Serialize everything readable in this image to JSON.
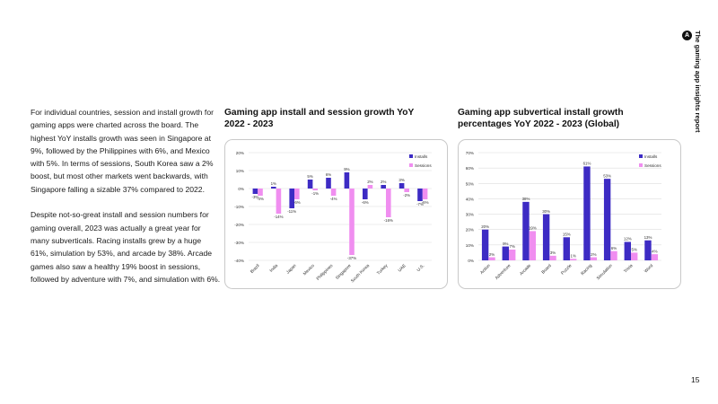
{
  "body": {
    "p1": "For individual countries, session and install growth for gaming apps were charted across the board. The highest YoY installs growth was seen in Singapore at 9%, followed by the Philippines with 6%, and Mexico with 5%. In terms of sessions, South Korea saw a 2% boost, but most other markets went backwards, with Singapore falling a sizable 37% compared to 2022.",
    "p2": "Despite not-so-great install and session numbers for gaming overall, 2023 was actually a great year for many subverticals. Racing installs grew by a huge 61%, simulation by 53%, and arcade by 38%. Arcade games also saw a healthy 19% boost in sessions, followed by adventure with 7%, and simulation with 6%."
  },
  "side": {
    "report_title": "The gaming app insights report",
    "logo_glyph": "A"
  },
  "page_number": "15",
  "colors": {
    "installs": "#3d2bc4",
    "sessions": "#f08ef0",
    "grid": "#dddddd",
    "text": "#333333"
  },
  "chart_data": [
    {
      "type": "bar",
      "title": "Gaming app install and session growth YoY 2022 - 2023",
      "categories": [
        "Brazil",
        "India",
        "Japan",
        "Mexico",
        "Philippines",
        "Singapore",
        "South Korea",
        "Turkey",
        "UAE",
        "U.S."
      ],
      "series": [
        {
          "name": "Installs",
          "values": [
            -3,
            1,
            -11,
            5,
            6,
            9,
            -6,
            2,
            3,
            -7
          ]
        },
        {
          "name": "Sessions",
          "values": [
            -4,
            -14,
            -6,
            -1,
            -4,
            -37,
            2,
            -16,
            -2,
            -6
          ]
        }
      ],
      "data_labels": {
        "Installs": [
          "-3%",
          "1%",
          "-11%",
          "5%",
          "6%",
          "9%",
          "-6%",
          "2%",
          "3%",
          "-7%"
        ],
        "Sessions": [
          "-4%",
          "-14%",
          "-6%",
          "-1%",
          "-4%",
          "-37%",
          "2%",
          "-16%",
          "-2%",
          "-6%"
        ]
      },
      "yticks": [
        20,
        10,
        0,
        -10,
        -20,
        -30,
        -40
      ],
      "ytick_labels": [
        "20%",
        "10%",
        "0%",
        "-10%",
        "-20%",
        "-30%",
        "-40%"
      ],
      "ylim": [
        -40,
        20
      ],
      "legend": "top-right",
      "grid": true
    },
    {
      "type": "bar",
      "title": "Gaming app subvertical install growth percentages YoY 2022 - 2023 (Global)",
      "categories": [
        "Action",
        "Adventure",
        "Arcade",
        "Board",
        "Puzzle",
        "Racing",
        "Simulation",
        "Trivia",
        "Word"
      ],
      "series": [
        {
          "name": "Installs",
          "values": [
            20,
            9,
            38,
            30,
            15,
            61,
            53,
            12,
            13
          ]
        },
        {
          "name": "Sessions",
          "values": [
            2,
            7,
            19,
            3,
            1,
            2,
            6,
            5,
            4
          ]
        }
      ],
      "data_labels": {
        "Installs": [
          "20%",
          "9%",
          "38%",
          "30%",
          "15%",
          "61%",
          "53%",
          "12%",
          "13%"
        ],
        "Sessions": [
          "2%",
          "7%",
          "19%",
          "3%",
          "1%",
          "2%",
          "6%",
          "5%",
          "4%"
        ]
      },
      "yticks": [
        70,
        60,
        50,
        40,
        30,
        20,
        10,
        0
      ],
      "ytick_labels": [
        "70%",
        "60%",
        "50%",
        "40%",
        "30%",
        "20%",
        "10%",
        "0%"
      ],
      "ylim": [
        0,
        70
      ],
      "legend": "top-right",
      "grid": true
    }
  ]
}
